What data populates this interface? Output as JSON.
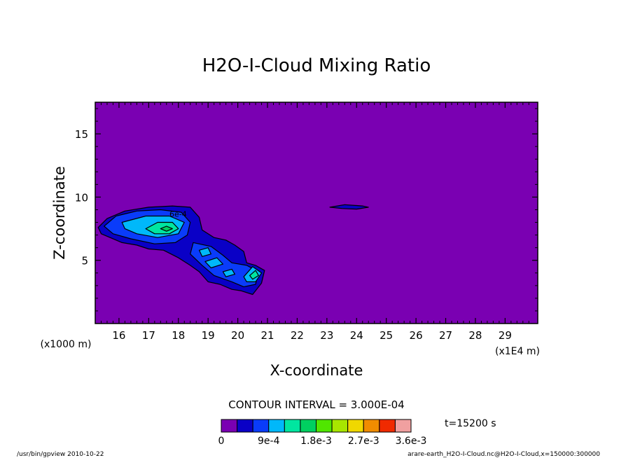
{
  "chart_data": {
    "type": "contour",
    "title": "H2O-I-Cloud Mixing Ratio",
    "xlabel": "X-coordinate",
    "ylabel": "Z-coordinate",
    "x_unit": "(x1E4 m)",
    "y_unit": "(x1000 m)",
    "xlim": [
      15.2,
      30.1
    ],
    "ylim": [
      0,
      17.5
    ],
    "xticks": [
      16,
      17,
      18,
      19,
      20,
      21,
      22,
      23,
      24,
      25,
      26,
      27,
      28,
      29
    ],
    "yticks": [
      5,
      10,
      15
    ],
    "background_color": "#7a00b2",
    "contour_interval_label": "CONTOUR INTERVAL = 3.000E-04",
    "inline_label": "6e-4",
    "time_label": "t=15200 s",
    "colorbar": {
      "colors": [
        "#7a00b2",
        "#0a00c6",
        "#0a3cfa",
        "#00b8fa",
        "#00e6a0",
        "#00d060",
        "#50e600",
        "#a8e600",
        "#f0d800",
        "#f08c00",
        "#f02a00",
        "#f0a0a0"
      ],
      "tick_labels": [
        "0",
        "9e-4",
        "1.8e-3",
        "2.7e-3",
        "3.6e-3"
      ]
    },
    "regions": [
      {
        "level": 1,
        "points": [
          [
            15.3,
            7.6
          ],
          [
            15.6,
            8.3
          ],
          [
            16.2,
            8.9
          ],
          [
            17.0,
            9.2
          ],
          [
            17.8,
            9.3
          ],
          [
            18.4,
            9.2
          ],
          [
            18.7,
            8.4
          ],
          [
            18.8,
            7.4
          ],
          [
            19.2,
            6.8
          ],
          [
            19.6,
            6.6
          ],
          [
            19.9,
            6.2
          ],
          [
            20.2,
            5.7
          ],
          [
            20.3,
            4.8
          ],
          [
            20.6,
            4.6
          ],
          [
            20.9,
            4.2
          ],
          [
            20.8,
            3.2
          ],
          [
            20.5,
            2.3
          ],
          [
            20.1,
            2.6
          ],
          [
            19.8,
            2.7
          ],
          [
            19.4,
            3.1
          ],
          [
            19.0,
            3.3
          ],
          [
            18.7,
            4.1
          ],
          [
            18.4,
            4.6
          ],
          [
            18.0,
            5.2
          ],
          [
            17.5,
            5.8
          ],
          [
            17.0,
            5.9
          ],
          [
            16.6,
            6.2
          ],
          [
            16.1,
            6.4
          ],
          [
            15.7,
            6.8
          ],
          [
            15.4,
            7.1
          ]
        ]
      },
      {
        "level": 2,
        "points": [
          [
            15.5,
            7.7
          ],
          [
            15.9,
            8.5
          ],
          [
            16.6,
            8.9
          ],
          [
            17.4,
            9.0
          ],
          [
            18.1,
            8.8
          ],
          [
            18.4,
            8.0
          ],
          [
            18.3,
            7.0
          ],
          [
            17.9,
            6.4
          ],
          [
            17.2,
            6.3
          ],
          [
            16.4,
            6.7
          ],
          [
            15.8,
            7.1
          ]
        ]
      },
      {
        "level": 2,
        "points": [
          [
            18.5,
            6.4
          ],
          [
            19.1,
            6.1
          ],
          [
            19.5,
            5.4
          ],
          [
            19.8,
            4.8
          ],
          [
            20.3,
            4.6
          ],
          [
            20.7,
            4.1
          ],
          [
            20.6,
            3.1
          ],
          [
            20.2,
            2.9
          ],
          [
            19.8,
            3.3
          ],
          [
            19.2,
            3.8
          ],
          [
            18.8,
            4.6
          ],
          [
            18.4,
            5.5
          ]
        ]
      },
      {
        "level": 3,
        "points": [
          [
            16.1,
            8.0
          ],
          [
            16.9,
            8.5
          ],
          [
            17.7,
            8.5
          ],
          [
            18.2,
            8.0
          ],
          [
            18.0,
            7.1
          ],
          [
            17.3,
            6.8
          ],
          [
            16.6,
            7.1
          ],
          [
            16.2,
            7.5
          ]
        ]
      },
      {
        "level": 3,
        "points": [
          [
            18.7,
            5.8
          ],
          [
            19.0,
            6.0
          ],
          [
            19.1,
            5.5
          ],
          [
            18.8,
            5.3
          ]
        ]
      },
      {
        "level": 3,
        "points": [
          [
            18.9,
            4.9
          ],
          [
            19.3,
            5.2
          ],
          [
            19.5,
            4.7
          ],
          [
            19.1,
            4.4
          ]
        ]
      },
      {
        "level": 3,
        "points": [
          [
            19.5,
            4.1
          ],
          [
            19.8,
            4.3
          ],
          [
            19.9,
            3.9
          ],
          [
            19.6,
            3.7
          ]
        ]
      },
      {
        "level": 3,
        "points": [
          [
            20.2,
            3.7
          ],
          [
            20.5,
            4.5
          ],
          [
            20.8,
            4.0
          ],
          [
            20.6,
            3.3
          ],
          [
            20.3,
            3.3
          ]
        ]
      },
      {
        "level": 4,
        "points": [
          [
            16.9,
            7.5
          ],
          [
            17.3,
            8.0
          ],
          [
            17.8,
            8.0
          ],
          [
            18.0,
            7.5
          ],
          [
            17.7,
            7.1
          ],
          [
            17.2,
            7.1
          ]
        ]
      },
      {
        "level": 5,
        "points": [
          [
            17.4,
            7.5
          ],
          [
            17.6,
            7.7
          ],
          [
            17.8,
            7.5
          ],
          [
            17.6,
            7.3
          ]
        ]
      },
      {
        "level": 4,
        "points": [
          [
            20.4,
            3.8
          ],
          [
            20.6,
            4.2
          ],
          [
            20.7,
            3.8
          ],
          [
            20.5,
            3.5
          ]
        ]
      },
      {
        "level": 1,
        "points": [
          [
            23.1,
            9.2
          ],
          [
            23.6,
            9.4
          ],
          [
            24.2,
            9.3
          ],
          [
            24.4,
            9.2
          ],
          [
            24.0,
            9.05
          ],
          [
            23.5,
            9.1
          ]
        ]
      }
    ],
    "footer_left": "/usr/bin/gpview  2010-10-22",
    "footer_right": "arare-earth_H2O-I-Cloud.nc@H2O-I-Cloud,x=150000:300000"
  }
}
